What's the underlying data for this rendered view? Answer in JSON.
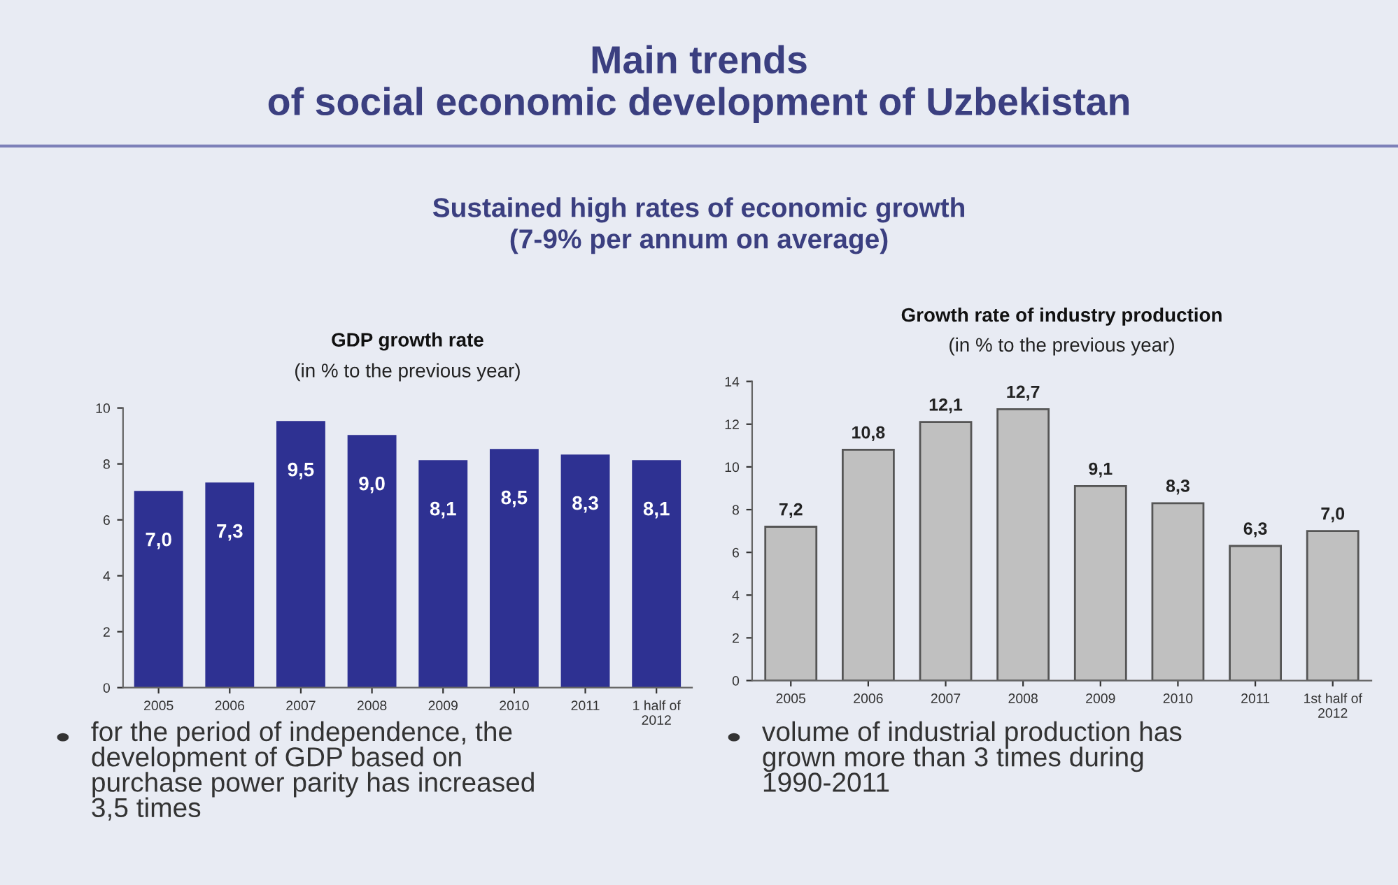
{
  "chart_data": [
    {
      "type": "bar",
      "title": "GDP growth rate",
      "subtitle": "(in % to the previous year)",
      "categories": [
        "2005",
        "2006",
        "2007",
        "2008",
        "2009",
        "2010",
        "2011",
        "1 half of\n2012"
      ],
      "values": [
        7.0,
        7.3,
        9.5,
        9.0,
        8.1,
        8.5,
        8.3,
        8.1
      ],
      "value_labels": [
        "7,0",
        "7,3",
        "9,5",
        "9,0",
        "8,1",
        "8,5",
        "8,3",
        "8,1"
      ],
      "color": "#2e3192",
      "ylim": [
        0,
        10
      ],
      "yticks": [
        0,
        2,
        4,
        6,
        8,
        10
      ],
      "grid": false,
      "annotations": [
        "Main trends\nof social economic development of Uzbekistan",
        "Sustained high rates of economic growth\n(7-9% per annum on average)",
        "for the period of independence, the\ndevelopment of GDP based on\npurchase power parity has increased\n3,5 times"
      ]
    },
    {
      "type": "bar",
      "title": "Growth rate of industry production",
      "subtitle": "(in % to the previous year)",
      "categories": [
        "2005",
        "2006",
        "2007",
        "2008",
        "2009",
        "2010",
        "2011",
        "1st half of\n2012"
      ],
      "values": [
        7.2,
        10.8,
        12.1,
        12.7,
        9.1,
        8.3,
        6.3,
        7.0
      ],
      "value_labels": [
        "7,2",
        "10,8",
        "12,1",
        "12,7",
        "9,1",
        "8,3",
        "6,3",
        "7,0"
      ],
      "color": "#c0c0c0",
      "ylim": [
        0,
        14
      ],
      "yticks": [
        0,
        2,
        4,
        6,
        8,
        10,
        12,
        14
      ],
      "grid": false,
      "annotations": [
        "volume of industrial production has\ngrown more than 3 times during\n1990-2011"
      ]
    }
  ]
}
